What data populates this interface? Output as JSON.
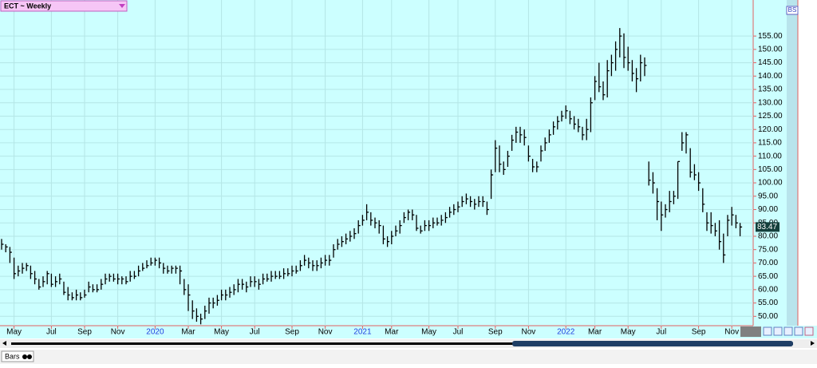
{
  "chart_data": {
    "type": "ohlc",
    "title": "ECT ~ Weekly",
    "tab": "Bars",
    "badge": "BS",
    "color": "#000000",
    "grid": true,
    "ylim": [
      46.5,
      168.5
    ],
    "yticks": [
      {
        "value": 50,
        "label": "50.00"
      },
      {
        "value": 55,
        "label": "55.00"
      },
      {
        "value": 60,
        "label": "60.00"
      },
      {
        "value": 65,
        "label": "65.00"
      },
      {
        "value": 70,
        "label": "70.00"
      },
      {
        "value": 75,
        "label": "75.00"
      },
      {
        "value": 80,
        "label": "80.00"
      },
      {
        "value": 85,
        "label": "85.00"
      },
      {
        "value": 90,
        "label": "90.00"
      },
      {
        "value": 95,
        "label": "95.00"
      },
      {
        "value": 100,
        "label": "100.00"
      },
      {
        "value": 105,
        "label": "105.00"
      },
      {
        "value": 110,
        "label": "110.00"
      },
      {
        "value": 115,
        "label": "115.00"
      },
      {
        "value": 120,
        "label": "120.00"
      },
      {
        "value": 125,
        "label": "125.00"
      },
      {
        "value": 130,
        "label": "130.00"
      },
      {
        "value": 135,
        "label": "135.00"
      },
      {
        "value": 140,
        "label": "140.00"
      },
      {
        "value": 145,
        "label": "145.00"
      },
      {
        "value": 150,
        "label": "150.00"
      },
      {
        "value": 155,
        "label": "155.00"
      }
    ],
    "xticks": [
      {
        "value": 3,
        "label": "May"
      },
      {
        "value": 12,
        "label": "Jul"
      },
      {
        "value": 20,
        "label": "Sep"
      },
      {
        "value": 28,
        "label": "Nov"
      },
      {
        "value": 37,
        "label": "2020"
      },
      {
        "value": 45,
        "label": "Mar"
      },
      {
        "value": 53,
        "label": "May"
      },
      {
        "value": 61,
        "label": "Jul"
      },
      {
        "value": 70,
        "label": "Sep"
      },
      {
        "value": 78,
        "label": "Nov"
      },
      {
        "value": 87,
        "label": "2021"
      },
      {
        "value": 94,
        "label": "Mar"
      },
      {
        "value": 103,
        "label": "May"
      },
      {
        "value": 110,
        "label": "Jul"
      },
      {
        "value": 119,
        "label": "Sep"
      },
      {
        "value": 127,
        "label": "Nov"
      },
      {
        "value": 136,
        "label": "2022"
      },
      {
        "value": 143,
        "label": "Mar"
      },
      {
        "value": 151,
        "label": "May"
      },
      {
        "value": 159,
        "label": "Jul"
      },
      {
        "value": 168,
        "label": "Sep"
      },
      {
        "value": 176,
        "label": "Nov"
      }
    ],
    "bars": [
      [
        79,
        75,
        77
      ],
      [
        77,
        74,
        76
      ],
      [
        76,
        70,
        74
      ],
      [
        72,
        64,
        66
      ],
      [
        69,
        65,
        67
      ],
      [
        70,
        66,
        68
      ],
      [
        70,
        67,
        69
      ],
      [
        69,
        64,
        66
      ],
      [
        67,
        62,
        64
      ],
      [
        64,
        60,
        61
      ],
      [
        65,
        61,
        63
      ],
      [
        67,
        62,
        66
      ],
      [
        66,
        61,
        62
      ],
      [
        65,
        61,
        63
      ],
      [
        66,
        62,
        64
      ],
      [
        63,
        58,
        59
      ],
      [
        61,
        56,
        58
      ],
      [
        59,
        56,
        57
      ],
      [
        60,
        56,
        58
      ],
      [
        59,
        56,
        57
      ],
      [
        60,
        57,
        58
      ],
      [
        63,
        59,
        61
      ],
      [
        62,
        59,
        60
      ],
      [
        62,
        59,
        60
      ],
      [
        64,
        60,
        62
      ],
      [
        66,
        62,
        64
      ],
      [
        66,
        63,
        65
      ],
      [
        66,
        63,
        64
      ],
      [
        66,
        62,
        64
      ],
      [
        65,
        62,
        64
      ],
      [
        65,
        62,
        63
      ],
      [
        67,
        63,
        65
      ],
      [
        67,
        64,
        65
      ],
      [
        69,
        65,
        67
      ],
      [
        70,
        67,
        68
      ],
      [
        71,
        68,
        69
      ],
      [
        72,
        69,
        70
      ],
      [
        72,
        69,
        71
      ],
      [
        72,
        68,
        70
      ],
      [
        70,
        66,
        68
      ],
      [
        69,
        66,
        67
      ],
      [
        69,
        66,
        68
      ],
      [
        69,
        66,
        68
      ],
      [
        69,
        62,
        67
      ],
      [
        64,
        58,
        60
      ],
      [
        62,
        52,
        58
      ],
      [
        56,
        49,
        52
      ],
      [
        53,
        48,
        50
      ],
      [
        51,
        47,
        49
      ],
      [
        54,
        49,
        52
      ],
      [
        57,
        51,
        55
      ],
      [
        57,
        53,
        55
      ],
      [
        58,
        54,
        56
      ],
      [
        60,
        56,
        58
      ],
      [
        60,
        56,
        58
      ],
      [
        61,
        57,
        59
      ],
      [
        62,
        58,
        60
      ],
      [
        64,
        59,
        62
      ],
      [
        64,
        60,
        62
      ],
      [
        63,
        59,
        61
      ],
      [
        65,
        61,
        63
      ],
      [
        65,
        61,
        63
      ],
      [
        64,
        60,
        62
      ],
      [
        66,
        62,
        64
      ],
      [
        66,
        63,
        64
      ],
      [
        67,
        63,
        65
      ],
      [
        67,
        64,
        65
      ],
      [
        67,
        64,
        65
      ],
      [
        68,
        64,
        66
      ],
      [
        68,
        65,
        66
      ],
      [
        69,
        65,
        67
      ],
      [
        69,
        66,
        67
      ],
      [
        71,
        67,
        69
      ],
      [
        73,
        69,
        71
      ],
      [
        72,
        68,
        70
      ],
      [
        71,
        67,
        69
      ],
      [
        71,
        67,
        69
      ],
      [
        72,
        68,
        70
      ],
      [
        73,
        69,
        71
      ],
      [
        73,
        69,
        71
      ],
      [
        77,
        72,
        75
      ],
      [
        79,
        75,
        77
      ],
      [
        80,
        76,
        78
      ],
      [
        81,
        77,
        79
      ],
      [
        82,
        78,
        80
      ],
      [
        83,
        79,
        81
      ],
      [
        86,
        81,
        84
      ],
      [
        88,
        84,
        86
      ],
      [
        92,
        86,
        89
      ],
      [
        89,
        84,
        86
      ],
      [
        87,
        83,
        85
      ],
      [
        86,
        81,
        84
      ],
      [
        84,
        77,
        79
      ],
      [
        80,
        76,
        78
      ],
      [
        82,
        77,
        80
      ],
      [
        84,
        80,
        82
      ],
      [
        86,
        81,
        84
      ],
      [
        89,
        85,
        87
      ],
      [
        90,
        86,
        89
      ],
      [
        90,
        86,
        88
      ],
      [
        88,
        82,
        83
      ],
      [
        84,
        81,
        82
      ],
      [
        86,
        82,
        84
      ],
      [
        86,
        82,
        84
      ],
      [
        87,
        83,
        85
      ],
      [
        87,
        84,
        85
      ],
      [
        88,
        84,
        86
      ],
      [
        89,
        85,
        87
      ],
      [
        91,
        87,
        89
      ],
      [
        92,
        88,
        90
      ],
      [
        93,
        89,
        91
      ],
      [
        95,
        91,
        93
      ],
      [
        96,
        92,
        94
      ],
      [
        95,
        91,
        93
      ],
      [
        94,
        90,
        92
      ],
      [
        95,
        91,
        93
      ],
      [
        95,
        91,
        93
      ],
      [
        93,
        88,
        90
      ],
      [
        105,
        94,
        103
      ],
      [
        116,
        104,
        113
      ],
      [
        114,
        104,
        107
      ],
      [
        108,
        103,
        105
      ],
      [
        112,
        106,
        110
      ],
      [
        118,
        112,
        116
      ],
      [
        121,
        115,
        119
      ],
      [
        121,
        115,
        118
      ],
      [
        120,
        114,
        117
      ],
      [
        114,
        108,
        110
      ],
      [
        109,
        104,
        106
      ],
      [
        108,
        104,
        106
      ],
      [
        114,
        108,
        112
      ],
      [
        117,
        112,
        115
      ],
      [
        120,
        115,
        118
      ],
      [
        123,
        118,
        121
      ],
      [
        125,
        120,
        123
      ],
      [
        127,
        123,
        125
      ],
      [
        129,
        124,
        127
      ],
      [
        127,
        122,
        124
      ],
      [
        125,
        120,
        122
      ],
      [
        124,
        119,
        121
      ],
      [
        121,
        116,
        118
      ],
      [
        124,
        116,
        120
      ],
      [
        132,
        119,
        130
      ],
      [
        140,
        131,
        138
      ],
      [
        145,
        134,
        136
      ],
      [
        138,
        131,
        133
      ],
      [
        146,
        132,
        142
      ],
      [
        148,
        140,
        145
      ],
      [
        153,
        142,
        150
      ],
      [
        158,
        147,
        155
      ],
      [
        156,
        143,
        147
      ],
      [
        151,
        142,
        145
      ],
      [
        146,
        138,
        141
      ],
      [
        143,
        134,
        139
      ],
      [
        148,
        138,
        145
      ],
      [
        147,
        140,
        144
      ],
      [
        108,
        99,
        101
      ],
      [
        104,
        96,
        100
      ],
      [
        98,
        86,
        93
      ],
      [
        93,
        82,
        88
      ],
      [
        92,
        87,
        90
      ],
      [
        97,
        89,
        93
      ],
      [
        97,
        92,
        95
      ],
      [
        108,
        94,
        108
      ],
      [
        119,
        112,
        115
      ],
      [
        119,
        111,
        118
      ],
      [
        113,
        102,
        104
      ],
      [
        107,
        101,
        103
      ],
      [
        104,
        97,
        100
      ],
      [
        98,
        89,
        92
      ],
      [
        89,
        82,
        85
      ],
      [
        89,
        81,
        84
      ],
      [
        85,
        80,
        82
      ],
      [
        86,
        75,
        78
      ],
      [
        81,
        70,
        73
      ],
      [
        88,
        80,
        86
      ],
      [
        91,
        84,
        88
      ],
      [
        88,
        83,
        85
      ],
      [
        85,
        80,
        83.47
      ]
    ]
  }
}
